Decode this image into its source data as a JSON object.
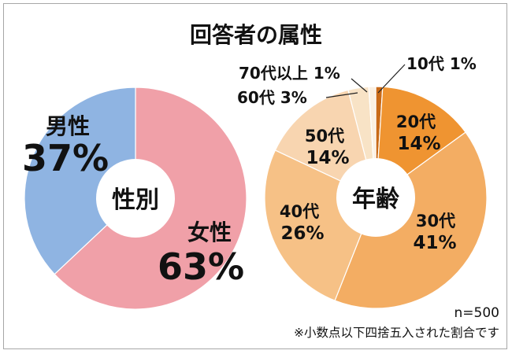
{
  "title": "回答者の属性",
  "chart_data": [
    {
      "type": "pie",
      "variant": "donut",
      "center_label": "性別",
      "labels": [
        "女性",
        "男性"
      ],
      "values": [
        63,
        37
      ],
      "value_labels": [
        "63%",
        "37%"
      ],
      "colors": [
        "#f0a0a8",
        "#8fb4e2"
      ]
    },
    {
      "type": "pie",
      "variant": "donut",
      "center_label": "年齢",
      "labels": [
        "10代",
        "20代",
        "30代",
        "40代",
        "50代",
        "60代",
        "70代以上"
      ],
      "values": [
        1,
        14,
        41,
        26,
        14,
        3,
        1
      ],
      "value_labels": [
        "1%",
        "14%",
        "41%",
        "26%",
        "14%",
        "3%",
        "1%"
      ],
      "colors": [
        "#c96a18",
        "#ef9431",
        "#f3ad63",
        "#f6c186",
        "#f8d5b0",
        "#f8e3c6",
        "#fbf0e2"
      ]
    }
  ],
  "footnote": {
    "sample": "n=500",
    "rounding_note": "※小数点以下四捨五入された割合です"
  }
}
